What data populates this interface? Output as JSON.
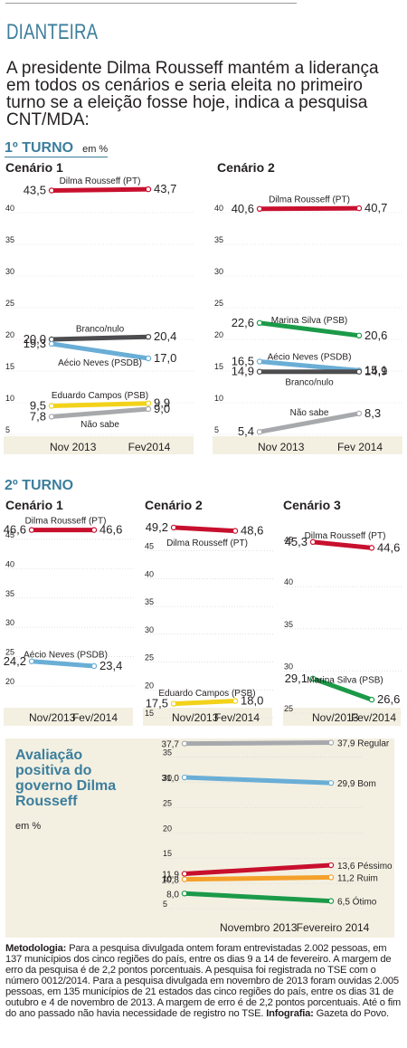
{
  "header": {
    "kicker": "DIANTEIRA",
    "headline": "A presidente Dilma Rousseff mantém a liderança em todos os cenários e seria eleita no primeiro turno se a eleição fosse hoje, indica a pesquisa CNT/MDA:"
  },
  "sections": {
    "first_round": "1º TURNO",
    "first_round_unit": "em %",
    "second_round": "2º TURNO"
  },
  "evaluation": {
    "title": "Avaliação positiva do governo Dilma Rousseff",
    "unit": "em %"
  },
  "methodology": {
    "label": "Metodologia:",
    "text": "Para a pesquisa divulgada ontem foram entrevistadas 2.002 pessoas, em 137 municípios dos cinco regiões do país, entre os dias 9 a 14 de fevereiro. A margem de erro da pesquisa é de 2,2 pontos porcentuais. A pesquisa foi registrada no TSE com o número 0012/2014. Para a pesquisa divulgada em novembro de 2013 foram ouvidas 2.005 pessoas, em 135 municípios de 21 estados das cinco regiões do país, entre os dias 31 de outubro e 4 de novembro de 2013. A margem de erro  é de 2,2 pontos porcentuais. Até o fim do ano passado não havia necessidade de registro no TSE.",
    "credit_label": "Infografia:",
    "credit": "Gazeta do Povo."
  },
  "colors": {
    "accent": "#3c7e9c",
    "panel": "#f3f0e2",
    "red": "#c8102e",
    "blue": "#6aaed6",
    "dark": "#4d4d4f",
    "green": "#1b9a48",
    "yellow": "#f2d21a",
    "gray": "#a7a9ac",
    "orange": "#f4a02a"
  },
  "chart_data": [
    {
      "type": "line",
      "group": "1º TURNO",
      "title": "Cenário 1",
      "categories": [
        "Nov 2013",
        "Fev2014"
      ],
      "y_ticks": [
        5,
        10,
        15,
        20,
        25,
        30,
        35,
        40
      ],
      "ylim": [
        5,
        45
      ],
      "series": [
        {
          "name": "Dilma Rousseff (PT)",
          "color": "red",
          "values": [
            43.5,
            43.7
          ],
          "labels": [
            "43,5",
            "43,7"
          ]
        },
        {
          "name": "Branco/nulo",
          "color": "dark",
          "values": [
            20.0,
            20.4
          ],
          "labels": [
            "20,0",
            "20,4"
          ]
        },
        {
          "name": "Aécio Neves (PSDB)",
          "color": "blue",
          "values": [
            19.3,
            17.0
          ],
          "labels": [
            "19,3",
            "17,0"
          ]
        },
        {
          "name": "Eduardo Campos (PSB)",
          "color": "yellow",
          "values": [
            9.5,
            9.9
          ],
          "labels": [
            "9,5",
            "9,9"
          ]
        },
        {
          "name": "Não sabe",
          "color": "gray",
          "values": [
            7.8,
            9.0
          ],
          "labels": [
            "7,8",
            "9,0"
          ]
        }
      ]
    },
    {
      "type": "line",
      "group": "1º TURNO",
      "title": "Cenário 2",
      "categories": [
        "Nov 2013",
        "Fev 2014"
      ],
      "y_ticks": [
        5,
        10,
        15,
        20,
        25,
        30,
        35,
        40
      ],
      "ylim": [
        5,
        45
      ],
      "series": [
        {
          "name": "Dilma Rousseff (PT)",
          "color": "red",
          "values": [
            40.6,
            40.7
          ],
          "labels": [
            "40,6",
            "40,7"
          ]
        },
        {
          "name": "Marina Silva (PSB)",
          "color": "green",
          "values": [
            22.6,
            20.6
          ],
          "labels": [
            "22,6",
            "20,6"
          ]
        },
        {
          "name": "Aécio Neves (PSDB)",
          "color": "blue",
          "values": [
            16.5,
            15.1
          ],
          "labels": [
            "16,5",
            "15,1"
          ]
        },
        {
          "name": "Branco/nulo",
          "color": "dark",
          "values": [
            14.9,
            14.9
          ],
          "labels": [
            "14,9",
            "14,9"
          ]
        },
        {
          "name": "Não sabe",
          "color": "gray",
          "values": [
            5.4,
            8.3
          ],
          "labels": [
            "5,4",
            "8,3"
          ]
        }
      ]
    },
    {
      "type": "line",
      "group": "2º TURNO",
      "title": "Cenário 1",
      "categories": [
        "Nov/2013",
        "Fev/2014"
      ],
      "y_ticks": [
        20,
        25,
        30,
        35,
        40,
        45
      ],
      "ylim": [
        20,
        47
      ],
      "series": [
        {
          "name": "Dilma Rousseff (PT)",
          "color": "red",
          "values": [
            46.6,
            46.6
          ],
          "labels": [
            "46,6",
            "46,6"
          ]
        },
        {
          "name": "Aécio Neves (PSDB)",
          "color": "blue",
          "values": [
            24.2,
            23.4
          ],
          "labels": [
            "24,2",
            "23,4"
          ]
        }
      ]
    },
    {
      "type": "line",
      "group": "2º TURNO",
      "title": "Cenário 2",
      "categories": [
        "Nov/2013",
        "Fev/2014"
      ],
      "y_ticks": [
        15,
        20,
        25,
        30,
        35,
        40,
        45
      ],
      "ylim": [
        15,
        50
      ],
      "series": [
        {
          "name": "Dilma Rousseff (PT)",
          "color": "red",
          "values": [
            49.2,
            48.6
          ],
          "labels": [
            "49,2",
            "48,6"
          ]
        },
        {
          "name": "Eduardo Campos (PSB)",
          "color": "yellow",
          "values": [
            17.5,
            18.0
          ],
          "labels": [
            "17,5",
            "18,0"
          ]
        }
      ]
    },
    {
      "type": "line",
      "group": "2º TURNO",
      "title": "Cenário 3",
      "categories": [
        "Nov/2013",
        "Fev/2014"
      ],
      "y_ticks": [
        25,
        30,
        35,
        40,
        45
      ],
      "ylim": [
        25,
        47
      ],
      "series": [
        {
          "name": "Dilma Rousseff (PT)",
          "color": "red",
          "values": [
            45.3,
            44.6
          ],
          "labels": [
            "45,3",
            "44,6"
          ]
        },
        {
          "name": "Marina Silva (PSB)",
          "color": "green",
          "values": [
            29.1,
            26.6
          ],
          "labels": [
            "29,1",
            "26,6"
          ]
        }
      ]
    },
    {
      "type": "line",
      "group": "Avaliação",
      "title": "",
      "categories": [
        "Novembro 2013",
        "Fevereiro 2014"
      ],
      "y_ticks": [
        5,
        10,
        15,
        20,
        25,
        30,
        35
      ],
      "ylim": [
        5,
        38
      ],
      "series": [
        {
          "name": "Regular",
          "color": "gray",
          "values": [
            37.7,
            37.9
          ],
          "labels": [
            "37,7",
            "37,9"
          ]
        },
        {
          "name": "Bom",
          "color": "blue",
          "values": [
            31.0,
            29.9
          ],
          "labels": [
            "31,0",
            "29,9"
          ]
        },
        {
          "name": "Péssimo",
          "color": "red",
          "values": [
            11.9,
            13.6
          ],
          "labels": [
            "11,9",
            "13,6"
          ]
        },
        {
          "name": "Ruim",
          "color": "orange",
          "values": [
            10.8,
            11.2
          ],
          "labels": [
            "10,8",
            "11,2"
          ]
        },
        {
          "name": "Ótimo",
          "color": "green",
          "values": [
            8.0,
            6.5
          ],
          "labels": [
            "8,0",
            "6,5"
          ]
        }
      ]
    }
  ]
}
